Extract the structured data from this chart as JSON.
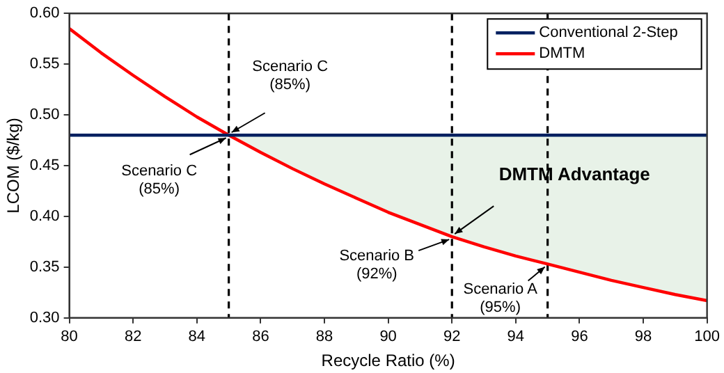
{
  "chart_data": {
    "type": "line",
    "xlabel": "Recycle Ratio (%)",
    "ylabel": "LCOM ($/kg)",
    "xlim": [
      80,
      100
    ],
    "xticks": [
      80,
      82,
      84,
      86,
      88,
      90,
      92,
      94,
      96,
      98,
      100
    ],
    "ylim": [
      0.3,
      0.6
    ],
    "yticks": [
      {
        "value": 0.3,
        "label": "0.30"
      },
      {
        "value": 0.35,
        "label": "0.35"
      },
      {
        "value": 0.4,
        "label": "0.40"
      },
      {
        "value": 0.45,
        "label": "0.45"
      },
      {
        "value": 0.5,
        "label": "0.50"
      },
      {
        "value": 0.55,
        "label": "0.55"
      },
      {
        "value": 0.6,
        "label": "0.60"
      }
    ],
    "series": [
      {
        "name": "Conventional 2-Step",
        "color": "#002060",
        "x": [
          80,
          100
        ],
        "values": [
          0.48,
          0.48
        ]
      },
      {
        "name": "DMTM",
        "color": "#ff0000",
        "x": [
          80,
          81,
          82,
          83,
          84,
          85,
          86,
          87,
          88,
          89,
          90,
          91,
          92,
          93,
          94,
          95,
          96,
          97,
          98,
          99,
          100
        ],
        "values": [
          0.585,
          0.561,
          0.539,
          0.518,
          0.498,
          0.48,
          0.463,
          0.447,
          0.432,
          0.418,
          0.404,
          0.392,
          0.38,
          0.37,
          0.361,
          0.353,
          0.345,
          0.337,
          0.33,
          0.323,
          0.317
        ],
        "lower": [
          null,
          null,
          null,
          null,
          null,
          0.48,
          0.463,
          0.447,
          0.432,
          0.418,
          0.404,
          0.392,
          0.38,
          0.37,
          0.361,
          0.353,
          0.345,
          0.337,
          0.33,
          0.323,
          0.317
        ],
        "upper": [
          null,
          null,
          null,
          null,
          null,
          0.48,
          0.48,
          0.48,
          0.48,
          0.48,
          0.48,
          0.48,
          0.48,
          0.48,
          0.48,
          0.48,
          0.48,
          0.48,
          0.48,
          0.48,
          0.48
        ]
      }
    ],
    "ref_lines": [
      {
        "axis": "x",
        "value": 85,
        "color": "#000000",
        "line_style": "dashed"
      },
      {
        "axis": "x",
        "value": 92,
        "color": "#000000",
        "line_style": "dashed"
      },
      {
        "axis": "x",
        "value": 95,
        "color": "#000000",
        "line_style": "dashed"
      }
    ],
    "annotations": [
      {
        "text": "Scenario C\n(85%)",
        "x": 85,
        "y": 0.48
      },
      {
        "text": "Scenario C\n(85%)",
        "x": 85,
        "y": 0.48
      },
      {
        "text": "DMTM Advantage",
        "x": 92,
        "y": 0.38
      },
      {
        "text": "Scenario B\n(92%)",
        "x": 92,
        "y": 0.38
      },
      {
        "text": "Scenario A\n(95%)",
        "x": 95,
        "y": 0.353
      }
    ],
    "legend": "top right",
    "grid": false,
    "marker": "none",
    "line_style": "solid"
  }
}
